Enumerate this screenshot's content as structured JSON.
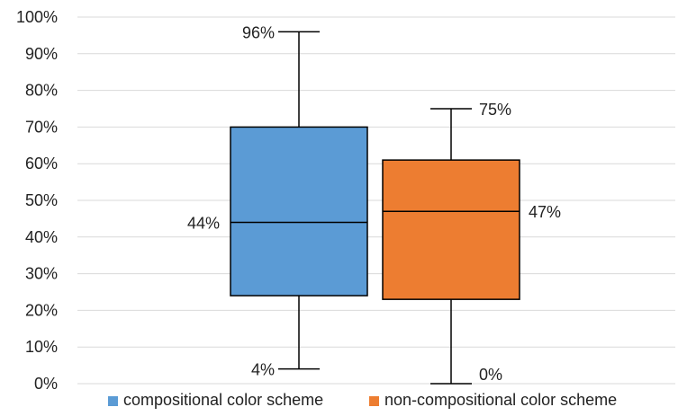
{
  "chart_data": {
    "type": "box",
    "title": "",
    "xlabel": "",
    "ylabel": "",
    "ylim": [
      0,
      100
    ],
    "y_ticks": [
      "0%",
      "10%",
      "20%",
      "30%",
      "40%",
      "50%",
      "60%",
      "70%",
      "80%",
      "90%",
      "100%"
    ],
    "grid": "horizontal",
    "legend_position": "bottom",
    "series": [
      {
        "name": "compositional color scheme",
        "color": "#5B9BD5",
        "min": 4,
        "q1": 24,
        "median": 44,
        "q3": 70,
        "max": 96,
        "labels": {
          "max": "96%",
          "median": "44%",
          "min": "4%"
        }
      },
      {
        "name": "non-compositional color scheme",
        "color": "#ED7D31",
        "min": 0,
        "q1": 23,
        "median": 47,
        "q3": 61,
        "max": 75,
        "labels": {
          "max": "75%",
          "median": "47%",
          "min": "0%"
        }
      }
    ]
  }
}
